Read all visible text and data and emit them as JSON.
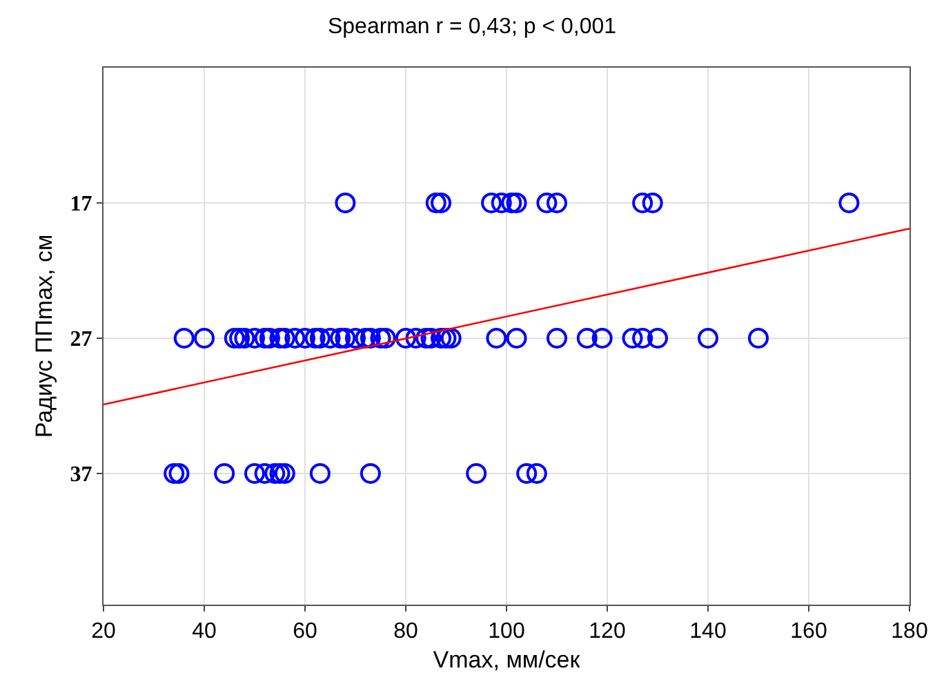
{
  "chart_data": {
    "type": "scatter",
    "title": "Spearman r = 0,43; p < 0,001",
    "xlabel": "Vmax, мм/сек",
    "ylabel": "Радиус ППmax, см",
    "xlim": [
      20,
      180
    ],
    "xticks": [
      20,
      40,
      60,
      80,
      100,
      120,
      140,
      160,
      180
    ],
    "ylim": [
      46.7,
      7
    ],
    "yticks": [
      17,
      27,
      37
    ],
    "grid": true,
    "marker": "circle",
    "series": [
      {
        "color": "#0000ff",
        "x": [
          68,
          86,
          87,
          97,
          99,
          101,
          102,
          108,
          110,
          127,
          129,
          168
        ],
        "values": [
          17,
          17,
          17,
          17,
          17,
          17,
          17,
          17,
          17,
          17,
          17,
          17
        ]
      },
      {
        "color": "#0000ff",
        "x": [
          36,
          40,
          46,
          47,
          48,
          50,
          52,
          53,
          55,
          56,
          58,
          60,
          62,
          63,
          65,
          67,
          68,
          70,
          72,
          73,
          75,
          76,
          80,
          82,
          84,
          85,
          87,
          88,
          89,
          98,
          102,
          110,
          116,
          119,
          125,
          127,
          130,
          140,
          150
        ],
        "values": [
          27,
          27,
          27,
          27,
          27,
          27,
          27,
          27,
          27,
          27,
          27,
          27,
          27,
          27,
          27,
          27,
          27,
          27,
          27,
          27,
          27,
          27,
          27,
          27,
          27,
          27,
          27,
          27,
          27,
          27,
          27,
          27,
          27,
          27,
          27,
          27,
          27,
          27,
          27
        ]
      },
      {
        "color": "#0000ff",
        "x": [
          34,
          35,
          44,
          50,
          52,
          54,
          55,
          56,
          63,
          73,
          94,
          104,
          106
        ],
        "values": [
          37,
          37,
          37,
          37,
          37,
          37,
          37,
          37,
          37,
          37,
          37,
          37,
          37
        ]
      },
      {
        "type": "line",
        "color": "#ff0000",
        "marker": "none",
        "x": [
          20,
          180
        ],
        "values": [
          31.9,
          18.9
        ]
      }
    ]
  }
}
